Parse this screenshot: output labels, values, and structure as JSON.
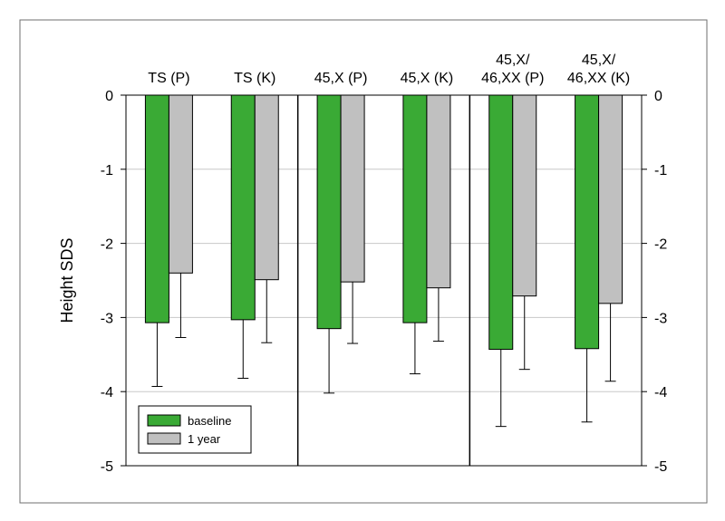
{
  "chart_data": {
    "type": "bar",
    "ylabel": "Height SDS",
    "ylim": [
      -5,
      0
    ],
    "yticks": [
      "0",
      "-1",
      "-2",
      "-3",
      "-4",
      "-5"
    ],
    "grid": true,
    "legend_position": "bottom-left",
    "colors": {
      "baseline": "#3aaa35",
      "1 year": "#c0c0c0"
    },
    "categories": [
      {
        "lines": [
          "TS (P)"
        ]
      },
      {
        "lines": [
          "TS (K)"
        ]
      },
      {
        "lines": [
          "45,X (P)"
        ]
      },
      {
        "lines": [
          "45,X (K)"
        ]
      },
      {
        "lines": [
          "45,X/",
          "46,XX (P)"
        ]
      },
      {
        "lines": [
          "45,X/",
          "46,XX (K)"
        ]
      }
    ],
    "series": [
      {
        "name": "baseline",
        "values": [
          -3.07,
          -3.03,
          -3.15,
          -3.07,
          -3.43,
          -3.42
        ],
        "error": [
          0.86,
          0.79,
          0.87,
          0.69,
          1.04,
          0.99
        ]
      },
      {
        "name": "1 year",
        "values": [
          -2.4,
          -2.49,
          -2.52,
          -2.6,
          -2.71,
          -2.81
        ],
        "error": [
          0.87,
          0.85,
          0.83,
          0.72,
          0.99,
          1.05
        ]
      }
    ],
    "group_separators_after": [
      1,
      3
    ]
  }
}
